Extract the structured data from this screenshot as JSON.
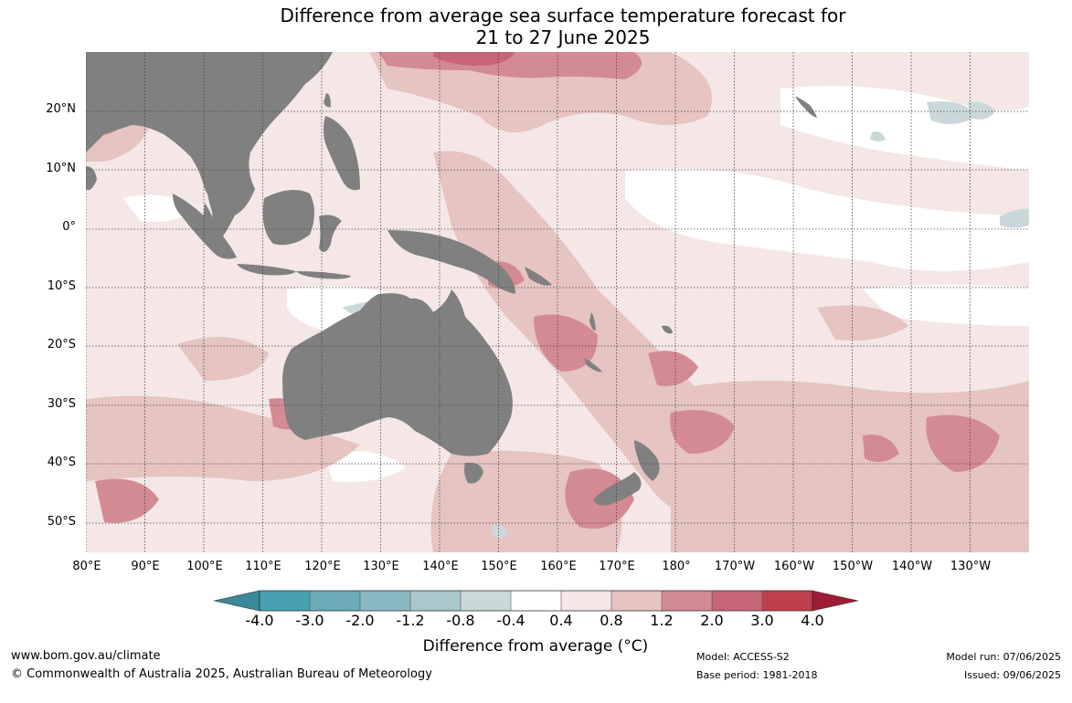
{
  "title": {
    "line1": "Difference from average sea surface temperature forecast for",
    "line2": "21 to 27 June 2025"
  },
  "map": {
    "lat_labels": [
      "20°N",
      "10°N",
      "0°",
      "10°S",
      "20°S",
      "30°S",
      "40°S",
      "50°S"
    ],
    "lon_labels": [
      "80°E",
      "90°E",
      "100°E",
      "110°E",
      "120°E",
      "130°E",
      "140°E",
      "150°E",
      "160°E",
      "170°E",
      "180°",
      "170°W",
      "160°W",
      "150°W",
      "140°W",
      "130°W"
    ],
    "colors": {
      "land": "#808080",
      "anomaly_0_4_0_8": "#f4e7e6",
      "anomaly_0_8_1_2": "#e5c4c2",
      "anomaly_1_2_2_0": "#d48a93",
      "anomaly_2_0_3_0": "#c66677",
      "anomaly_neg_0_8_neg_0_4": "#cbd8da",
      "anomaly_neg_1_2_neg_0_8": "#a8c8cd"
    }
  },
  "colorbar": {
    "tick_labels": [
      "-4.0",
      "-3.0",
      "-2.0",
      "-1.2",
      "-0.8",
      "-0.4",
      "0.4",
      "0.8",
      "1.2",
      "2.0",
      "3.0",
      "4.0"
    ],
    "colors": [
      "#3a8a97",
      "#47a1b0",
      "#6cacb8",
      "#8ab8c2",
      "#aac8cc",
      "#cbd8da",
      "#ffffff",
      "#f4e7e6",
      "#e5c4c2",
      "#d48a93",
      "#c66677",
      "#be3f4e",
      "#9e1c33"
    ],
    "title": "Difference from average (°C)"
  },
  "footer": {
    "website": "www.bom.gov.au/climate",
    "copyright": "© Commonwealth of Australia 2025, Australian Bureau of Meteorology",
    "model": "Model: ACCESS-S2",
    "base_period": "Base period: 1981-2018",
    "model_run": "Model run: 07/06/2025",
    "issued": "Issued: 09/06/2025"
  }
}
